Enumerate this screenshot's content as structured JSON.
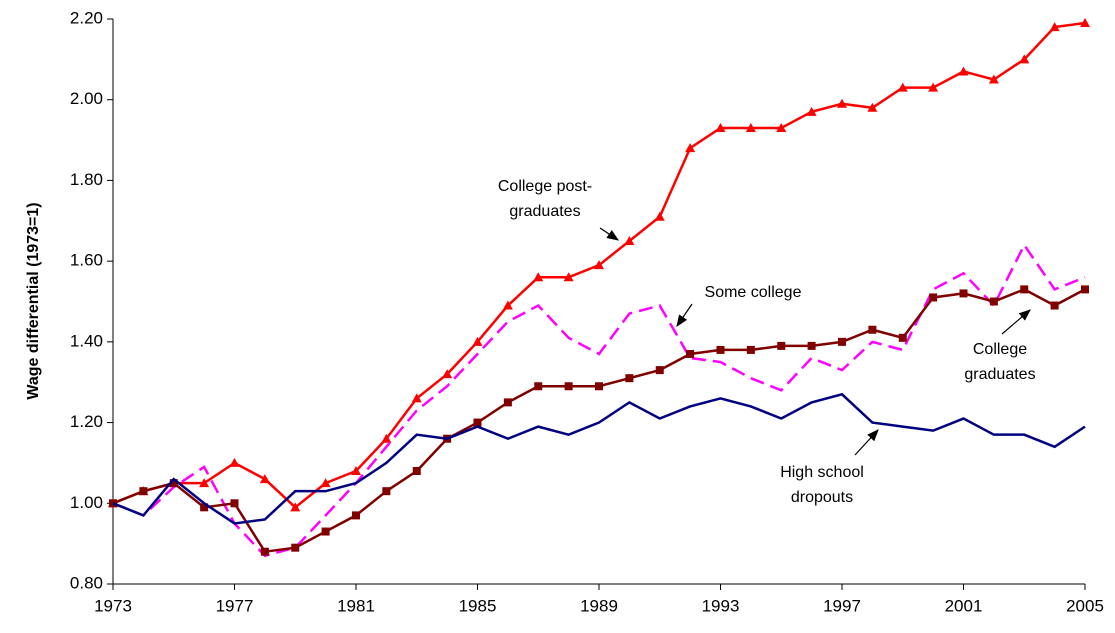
{
  "chart_data": {
    "type": "line",
    "y_label": "Wage differential (1973=1)",
    "x": [
      1973,
      1974,
      1975,
      1976,
      1977,
      1978,
      1979,
      1980,
      1981,
      1982,
      1983,
      1984,
      1985,
      1986,
      1987,
      1988,
      1989,
      1990,
      1991,
      1992,
      1993,
      1994,
      1995,
      1996,
      1997,
      1998,
      1999,
      2000,
      2001,
      2002,
      2003,
      2004,
      2005
    ],
    "xlim": [
      1973,
      2005
    ],
    "xticks": [
      1973,
      1977,
      1981,
      1985,
      1989,
      1993,
      1997,
      2001,
      2005
    ],
    "ylim": [
      0.8,
      2.2
    ],
    "yticks": [
      {
        "value": 0.8,
        "label": "0.80"
      },
      {
        "value": 1.0,
        "label": "1.00"
      },
      {
        "value": 1.2,
        "label": "1.20"
      },
      {
        "value": 1.4,
        "label": "1.40"
      },
      {
        "value": 1.6,
        "label": "1.60"
      },
      {
        "value": 1.8,
        "label": "1.80"
      },
      {
        "value": 2.0,
        "label": "2.00"
      },
      {
        "value": 2.2,
        "label": "2.20"
      }
    ],
    "grid": false,
    "series": [
      {
        "label": [
          "College post-",
          "graduates"
        ],
        "color": "#ff0000",
        "marker": "triangle",
        "dash": false,
        "values": [
          1.0,
          1.03,
          1.05,
          1.05,
          1.1,
          1.06,
          0.99,
          1.05,
          1.08,
          1.16,
          1.26,
          1.32,
          1.4,
          1.49,
          1.56,
          1.56,
          1.59,
          1.65,
          1.71,
          1.88,
          1.93,
          1.93,
          1.93,
          1.97,
          1.99,
          1.98,
          2.03,
          2.03,
          2.07,
          2.05,
          2.1,
          2.18,
          2.19
        ]
      },
      {
        "label": [
          "Some college"
        ],
        "color": "#ff00ff",
        "marker": "none",
        "dash": true,
        "values": [
          1.0,
          0.97,
          1.04,
          1.09,
          0.95,
          0.87,
          0.89,
          0.97,
          1.05,
          1.14,
          1.23,
          1.29,
          1.37,
          1.45,
          1.49,
          1.41,
          1.37,
          1.47,
          1.49,
          1.36,
          1.35,
          1.31,
          1.28,
          1.36,
          1.33,
          1.4,
          1.38,
          1.53,
          1.57,
          1.49,
          1.64,
          1.53,
          1.56
        ]
      },
      {
        "label": [
          "College",
          "graduates"
        ],
        "color": "#800000",
        "marker": "square",
        "dash": false,
        "values": [
          1.0,
          1.03,
          1.05,
          0.99,
          1.0,
          0.88,
          0.89,
          0.93,
          0.97,
          1.03,
          1.08,
          1.16,
          1.2,
          1.25,
          1.29,
          1.29,
          1.29,
          1.31,
          1.33,
          1.37,
          1.38,
          1.38,
          1.39,
          1.39,
          1.4,
          1.43,
          1.41,
          1.51,
          1.52,
          1.5,
          1.53,
          1.49,
          1.53
        ]
      },
      {
        "label": [
          "High school",
          "dropouts"
        ],
        "color": "#000080",
        "marker": "none",
        "dash": false,
        "values": [
          1.0,
          0.97,
          1.06,
          1.0,
          0.95,
          0.96,
          1.03,
          1.03,
          1.05,
          1.1,
          1.17,
          1.16,
          1.19,
          1.16,
          1.19,
          1.17,
          1.2,
          1.25,
          1.21,
          1.24,
          1.26,
          1.24,
          1.21,
          1.25,
          1.27,
          1.2,
          1.19,
          1.18,
          1.21,
          1.17,
          1.17,
          1.14,
          1.19
        ]
      }
    ]
  }
}
